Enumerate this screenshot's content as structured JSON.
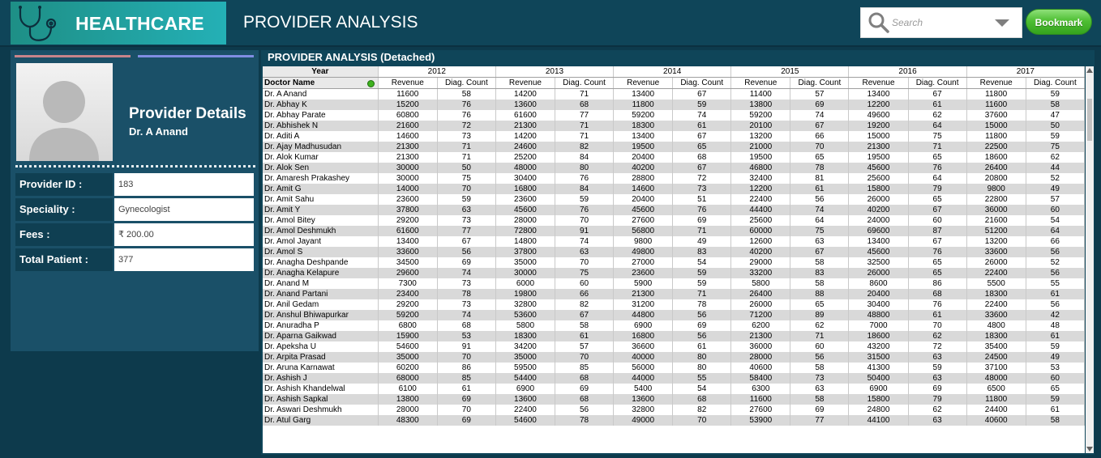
{
  "header": {
    "brand_title": "HEALTHCARE",
    "page_title": "PROVIDER ANALYSIS",
    "brand_icon": "stethoscope-icon",
    "search": {
      "placeholder": "Search",
      "icon": "search-icon"
    },
    "bookmark_label": "Bookmark"
  },
  "provider": {
    "heading": "Provider Details",
    "name": "Dr. A Anand",
    "fields": [
      {
        "label": "Provider ID :",
        "value": "183"
      },
      {
        "label": "Speciality :",
        "value": "Gynecologist"
      },
      {
        "label": "Fees :",
        "value": "₹ 200.00"
      },
      {
        "label": "Total Patient :",
        "value": "377"
      }
    ]
  },
  "table": {
    "title": "PROVIDER ANALYSIS (Detached)",
    "year_label": "Year",
    "doc_label": "Doctor Name",
    "years": [
      "2012",
      "2013",
      "2014",
      "2015",
      "2016",
      "2017"
    ],
    "sub_headers": [
      "Revenue",
      "Diag. Count"
    ],
    "rows": [
      [
        "Dr. A Anand",
        11600,
        58,
        14200,
        71,
        13400,
        67,
        11400,
        57,
        13400,
        67,
        11800,
        59
      ],
      [
        "Dr. Abhay K",
        15200,
        76,
        13600,
        68,
        11800,
        59,
        13800,
        69,
        12200,
        61,
        11600,
        58
      ],
      [
        "Dr. Abhay Parate",
        60800,
        76,
        61600,
        77,
        59200,
        74,
        59200,
        74,
        49600,
        62,
        37600,
        47
      ],
      [
        "Dr. Abhishek N",
        21600,
        72,
        21300,
        71,
        18300,
        61,
        20100,
        67,
        19200,
        64,
        15000,
        50
      ],
      [
        "Dr. Aditi A",
        14600,
        73,
        14200,
        71,
        13400,
        67,
        13200,
        66,
        15000,
        75,
        11800,
        59
      ],
      [
        "Dr. Ajay Madhusudan",
        21300,
        71,
        24600,
        82,
        19500,
        65,
        21000,
        70,
        21300,
        71,
        22500,
        75
      ],
      [
        "Dr. Alok Kumar",
        21300,
        71,
        25200,
        84,
        20400,
        68,
        19500,
        65,
        19500,
        65,
        18600,
        62
      ],
      [
        "Dr. Alok Sen",
        30000,
        50,
        48000,
        80,
        40200,
        67,
        46800,
        78,
        45600,
        76,
        26400,
        44
      ],
      [
        "Dr. Amaresh Prakashey",
        30000,
        75,
        30400,
        76,
        28800,
        72,
        32400,
        81,
        25600,
        64,
        20800,
        52
      ],
      [
        "Dr. Amit G",
        14000,
        70,
        16800,
        84,
        14600,
        73,
        12200,
        61,
        15800,
        79,
        9800,
        49
      ],
      [
        "Dr. Amit Sahu",
        23600,
        59,
        23600,
        59,
        20400,
        51,
        22400,
        56,
        26000,
        65,
        22800,
        57
      ],
      [
        "Dr. Amit Y",
        37800,
        63,
        45600,
        76,
        45600,
        76,
        44400,
        74,
        40200,
        67,
        36000,
        60
      ],
      [
        "Dr. Amol Bitey",
        29200,
        73,
        28000,
        70,
        27600,
        69,
        25600,
        64,
        24000,
        60,
        21600,
        54
      ],
      [
        "Dr. Amol Deshmukh",
        61600,
        77,
        72800,
        91,
        56800,
        71,
        60000,
        75,
        69600,
        87,
        51200,
        64
      ],
      [
        "Dr. Amol Jayant",
        13400,
        67,
        14800,
        74,
        9800,
        49,
        12600,
        63,
        13400,
        67,
        13200,
        66
      ],
      [
        "Dr. Amol S",
        33600,
        56,
        37800,
        63,
        49800,
        83,
        40200,
        67,
        45600,
        76,
        33600,
        56
      ],
      [
        "Dr. Anagha Deshpande",
        34500,
        69,
        35000,
        70,
        27000,
        54,
        29000,
        58,
        32500,
        65,
        26000,
        52
      ],
      [
        "Dr. Anagha Kelapure",
        29600,
        74,
        30000,
        75,
        23600,
        59,
        33200,
        83,
        26000,
        65,
        22400,
        56
      ],
      [
        "Dr. Anand M",
        7300,
        73,
        6000,
        60,
        5900,
        59,
        5800,
        58,
        8600,
        86,
        5500,
        55
      ],
      [
        "Dr. Anand Partani",
        23400,
        78,
        19800,
        66,
        21300,
        71,
        26400,
        88,
        20400,
        68,
        18300,
        61
      ],
      [
        "Dr. Anil Gedam",
        29200,
        73,
        32800,
        82,
        31200,
        78,
        26000,
        65,
        30400,
        76,
        22400,
        56
      ],
      [
        "Dr. Anshul Bhiwapurkar",
        59200,
        74,
        53600,
        67,
        44800,
        56,
        71200,
        89,
        48800,
        61,
        33600,
        42
      ],
      [
        "Dr. Anuradha P",
        6800,
        68,
        5800,
        58,
        6900,
        69,
        6200,
        62,
        7000,
        70,
        4800,
        48
      ],
      [
        "Dr. Aparna Gaikwad",
        15900,
        53,
        18300,
        61,
        16800,
        56,
        21300,
        71,
        18600,
        62,
        18300,
        61
      ],
      [
        "Dr. Apeksha U",
        54600,
        91,
        34200,
        57,
        36600,
        61,
        36000,
        60,
        43200,
        72,
        35400,
        59
      ],
      [
        "Dr. Arpita Prasad",
        35000,
        70,
        35000,
        70,
        40000,
        80,
        28000,
        56,
        31500,
        63,
        24500,
        49
      ],
      [
        "Dr. Aruna Karnawat",
        60200,
        86,
        59500,
        85,
        56000,
        80,
        40600,
        58,
        41300,
        59,
        37100,
        53
      ],
      [
        "Dr. Ashish J",
        68000,
        85,
        54400,
        68,
        44000,
        55,
        58400,
        73,
        50400,
        63,
        48000,
        60
      ],
      [
        "Dr. Ashish Khandelwal",
        6100,
        61,
        6900,
        69,
        5400,
        54,
        6300,
        63,
        6900,
        69,
        6500,
        65
      ],
      [
        "Dr. Ashish Sapkal",
        13800,
        69,
        13600,
        68,
        13600,
        68,
        11600,
        58,
        15800,
        79,
        11800,
        59
      ],
      [
        "Dr. Aswari Deshmukh",
        28000,
        70,
        22400,
        56,
        32800,
        82,
        27600,
        69,
        24800,
        62,
        24400,
        61
      ],
      [
        "Dr. Atul Garg",
        48300,
        69,
        54600,
        78,
        49000,
        70,
        53900,
        77,
        44100,
        63,
        40600,
        58
      ]
    ]
  }
}
